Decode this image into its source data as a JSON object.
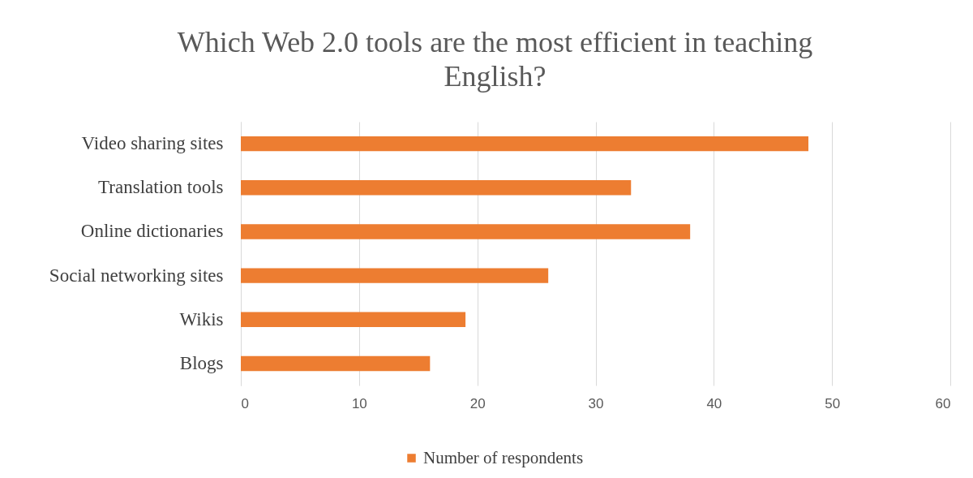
{
  "chart_data": {
    "type": "bar",
    "orientation": "horizontal",
    "title": "Which Web 2.0 tools are the most efficient in teaching English?",
    "categories": [
      "Video sharing sites",
      "Translation tools",
      "Online dictionaries",
      "Social networking sites",
      "Wikis",
      "Blogs"
    ],
    "series": [
      {
        "name": "Number of respondents",
        "color": "#ed7d31",
        "values": [
          48,
          33,
          38,
          26,
          19,
          16
        ]
      }
    ],
    "xlim": [
      0,
      60
    ],
    "xticks": [
      0,
      10,
      20,
      30,
      40,
      50,
      60
    ],
    "grid": "x",
    "legend": "bottom"
  }
}
